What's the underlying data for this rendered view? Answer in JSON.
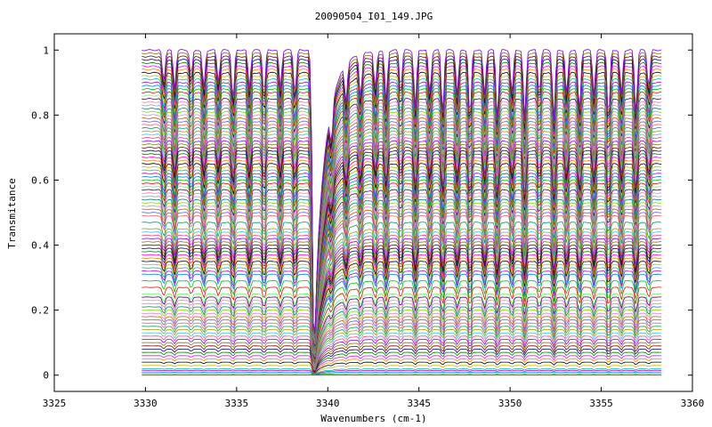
{
  "chart_data": {
    "type": "line",
    "title": "20090504_I01_149.JPG",
    "xlabel": "Wavenumbers (cm-1)",
    "ylabel": "Transmitance",
    "xlim": [
      3325,
      3360
    ],
    "ylim": [
      -0.05,
      1.05
    ],
    "x_ticks": [
      3325,
      3330,
      3335,
      3340,
      3345,
      3350,
      3355,
      3360
    ],
    "x_tick_labels": [
      "3325",
      "3330",
      "3335",
      "3340",
      "3345",
      "3350",
      "3355",
      "3360"
    ],
    "y_ticks": [
      0,
      0.2,
      0.4,
      0.6,
      0.8,
      1
    ],
    "y_tick_labels": [
      "0",
      "0.2",
      "0.4",
      "0.6",
      "0.8",
      "1"
    ],
    "grid": false,
    "legend": "none",
    "x_range": [
      3329.8,
      3358.3
    ],
    "series_count": 110,
    "baseline_levels": [
      0.0,
      0.005,
      0.01,
      0.015,
      0.02,
      0.03,
      0.04,
      0.05,
      0.06,
      0.07,
      0.08,
      0.09,
      0.1,
      0.11,
      0.12,
      0.13,
      0.14,
      0.15,
      0.16,
      0.17,
      0.18,
      0.19,
      0.2,
      0.21,
      0.22,
      0.23,
      0.24,
      0.25,
      0.27,
      0.29,
      0.31,
      0.32,
      0.33,
      0.34,
      0.35,
      0.36,
      0.37,
      0.38,
      0.39,
      0.4,
      0.41,
      0.42,
      0.43,
      0.44,
      0.45,
      0.47,
      0.49,
      0.5,
      0.51,
      0.52,
      0.53,
      0.54,
      0.55,
      0.56,
      0.57,
      0.58,
      0.59,
      0.6,
      0.61,
      0.62,
      0.63,
      0.64,
      0.65,
      0.66,
      0.67,
      0.68,
      0.69,
      0.7,
      0.71,
      0.72,
      0.73,
      0.74,
      0.75,
      0.76,
      0.77,
      0.78,
      0.79,
      0.8,
      0.81,
      0.82,
      0.83,
      0.84,
      0.85,
      0.86,
      0.87,
      0.88,
      0.89,
      0.9,
      0.91,
      0.92,
      0.93,
      0.94,
      0.95,
      0.96,
      0.97,
      0.98,
      0.99,
      1.0
    ],
    "absorption_lines": [
      {
        "x": 3331.0,
        "depth": 0.1
      },
      {
        "x": 3331.6,
        "depth": 0.12
      },
      {
        "x": 3332.5,
        "depth": 0.08
      },
      {
        "x": 3333.2,
        "depth": 0.12
      },
      {
        "x": 3334.0,
        "depth": 0.1
      },
      {
        "x": 3334.8,
        "depth": 0.16
      },
      {
        "x": 3335.7,
        "depth": 0.12
      },
      {
        "x": 3336.5,
        "depth": 0.14
      },
      {
        "x": 3337.4,
        "depth": 0.12
      },
      {
        "x": 3338.2,
        "depth": 0.14
      },
      {
        "x": 3339.25,
        "depth": 0.95
      },
      {
        "x": 3340.2,
        "depth": 0.14
      },
      {
        "x": 3341.0,
        "depth": 0.12
      },
      {
        "x": 3341.8,
        "depth": 0.14
      },
      {
        "x": 3342.6,
        "depth": 0.12
      },
      {
        "x": 3343.2,
        "depth": 0.16
      },
      {
        "x": 3344.0,
        "depth": 0.12
      },
      {
        "x": 3344.8,
        "depth": 0.18
      },
      {
        "x": 3345.6,
        "depth": 0.14
      },
      {
        "x": 3346.3,
        "depth": 0.2
      },
      {
        "x": 3347.1,
        "depth": 0.14
      },
      {
        "x": 3347.8,
        "depth": 0.22
      },
      {
        "x": 3348.6,
        "depth": 0.14
      },
      {
        "x": 3349.3,
        "depth": 0.22
      },
      {
        "x": 3350.1,
        "depth": 0.14
      },
      {
        "x": 3350.8,
        "depth": 0.22
      },
      {
        "x": 3351.6,
        "depth": 0.14
      },
      {
        "x": 3352.4,
        "depth": 0.22
      },
      {
        "x": 3353.1,
        "depth": 0.14
      },
      {
        "x": 3353.8,
        "depth": 0.2
      },
      {
        "x": 3354.6,
        "depth": 0.14
      },
      {
        "x": 3355.4,
        "depth": 0.22
      },
      {
        "x": 3356.1,
        "depth": 0.14
      },
      {
        "x": 3356.9,
        "depth": 0.2
      },
      {
        "x": 3357.6,
        "depth": 0.12
      }
    ],
    "palette": [
      "#ff0000",
      "#00c000",
      "#0080ff",
      "#c000c0",
      "#00c0c0",
      "#c0c000",
      "#000000",
      "#ff8000",
      "#ff00ff",
      "#008000",
      "#000080",
      "#800000",
      "#808000",
      "#8000ff",
      "#ff4080",
      "#40c0ff",
      "#a0a000",
      "#00a060",
      "#ff6060",
      "#6060ff",
      "#c06000",
      "#e080e0",
      "#80e000",
      "#008080",
      "#a0a0a0",
      "#ff80c0",
      "#400080",
      "#60ff60"
    ]
  }
}
